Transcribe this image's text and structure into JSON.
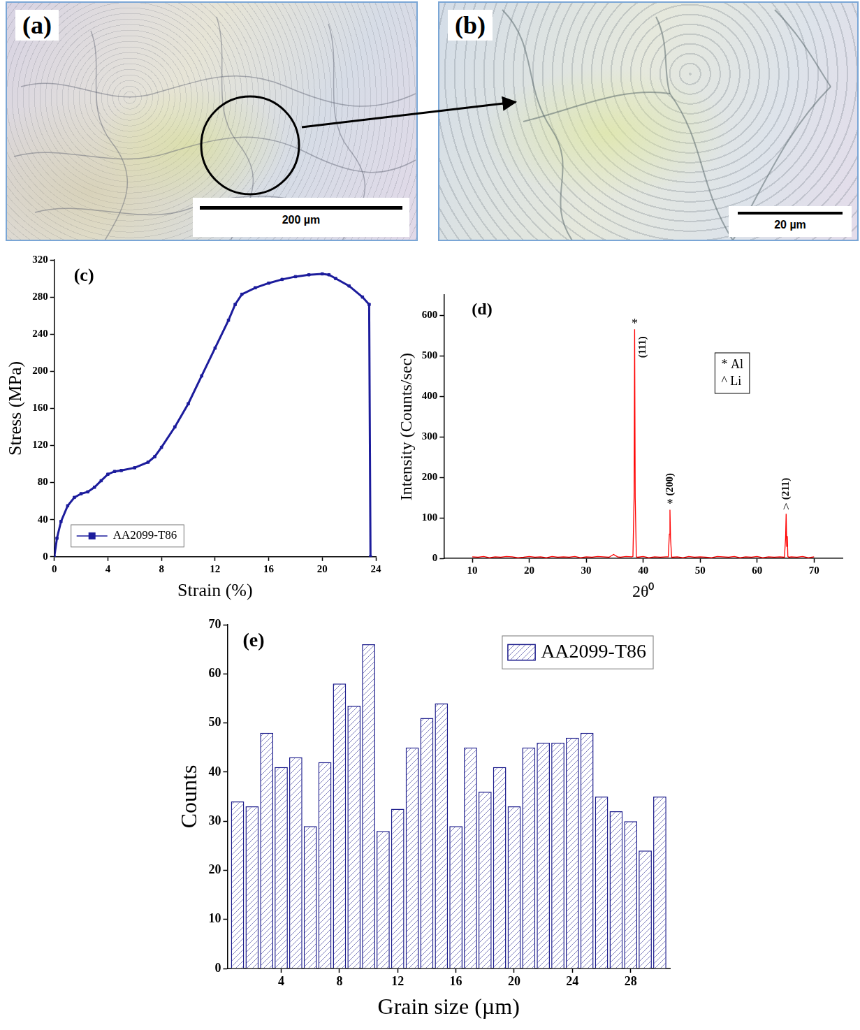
{
  "images": [
    {
      "label": "(a)",
      "scale_bar": "200 µm"
    },
    {
      "label": "(b)",
      "scale_bar": "20 µm"
    }
  ],
  "chart_data": [
    {
      "type": "line",
      "title": "(c)",
      "x_label": "Strain (%)",
      "y_label": "Stress (MPa)",
      "x": [
        0,
        0.2,
        0.5,
        1,
        1.5,
        2,
        2.5,
        3,
        3.5,
        4,
        4.5,
        5,
        6,
        7,
        7.5,
        8,
        9,
        10,
        11,
        12,
        13,
        13.5,
        14,
        15,
        16,
        17,
        18,
        19,
        20,
        20.5,
        21,
        22,
        23,
        23.5,
        23.6
      ],
      "series": [
        {
          "name": "AA2099-T86",
          "color": "#1c1c9c",
          "marker": "square",
          "values": [
            0,
            20,
            38,
            55,
            64,
            68,
            70,
            75,
            82,
            89,
            92,
            93,
            96,
            102,
            108,
            118,
            140,
            165,
            195,
            225,
            255,
            272,
            283,
            290,
            295,
            299,
            302,
            304,
            305,
            304,
            300,
            292,
            280,
            272,
            0
          ]
        }
      ],
      "xlim": [
        0,
        24
      ],
      "xticks": [
        0,
        4,
        8,
        12,
        16,
        20,
        24
      ],
      "ylim": [
        0,
        320
      ],
      "yticks": [
        0,
        40,
        80,
        120,
        160,
        200,
        240,
        280,
        320
      ],
      "grid": false,
      "legend": "lower left"
    },
    {
      "type": "line",
      "title": "(d)",
      "x_label": "2θ⁰",
      "y_label": "Intensity (Counts/sec)",
      "x": [
        10,
        11,
        12,
        13,
        14,
        15,
        16,
        17,
        18,
        19,
        20,
        21,
        22,
        23,
        24,
        25,
        26,
        27,
        28,
        29,
        30,
        31,
        32,
        33,
        34,
        34.8,
        35.5,
        36,
        37,
        38,
        38.2,
        38.4,
        38.5,
        38.6,
        38.8,
        39,
        40,
        41,
        42,
        43,
        44,
        44.4,
        44.6,
        44.7,
        44.8,
        45,
        46,
        47,
        48,
        49,
        50,
        51,
        52,
        53,
        54,
        55,
        56,
        57,
        58,
        59,
        60,
        61,
        62,
        63,
        64,
        64.8,
        65,
        65.1,
        65.2,
        65.3,
        65.4,
        65.6,
        66,
        67,
        68,
        69,
        70
      ],
      "values": [
        4,
        3,
        5,
        2,
        4,
        3,
        5,
        4,
        2,
        3,
        5,
        3,
        4,
        2,
        5,
        3,
        4,
        3,
        5,
        2,
        4,
        3,
        5,
        4,
        3,
        10,
        4,
        3,
        5,
        4,
        5,
        150,
        565,
        150,
        4,
        3,
        5,
        2,
        4,
        3,
        4,
        4,
        60,
        120,
        50,
        3,
        4,
        2,
        5,
        3,
        4,
        3,
        2,
        5,
        4,
        3,
        5,
        2,
        4,
        3,
        5,
        2,
        4,
        3,
        4,
        3,
        50,
        110,
        30,
        55,
        5,
        3,
        4,
        3,
        5,
        2,
        4
      ],
      "color": "#ff0000",
      "peaks": [
        {
          "x": 38.5,
          "y": 565,
          "symbol": "*",
          "label": "(111)"
        },
        {
          "x": 44.7,
          "y": 120,
          "symbol": "*",
          "label": "(200)"
        },
        {
          "x": 65.1,
          "y": 110,
          "symbol": "^",
          "label": "(211)"
        }
      ],
      "key": [
        "* Al",
        "^ Li"
      ],
      "xlim": [
        5,
        75
      ],
      "xticks": [
        10,
        20,
        30,
        40,
        50,
        60,
        70
      ],
      "ylim": [
        0,
        650
      ],
      "yticks": [
        0,
        100,
        200,
        300,
        400,
        500,
        600
      ],
      "grid": false
    },
    {
      "type": "bar",
      "title": "(e)",
      "x_label": "Grain size (µm)",
      "y_label": "Counts",
      "x": [
        1,
        2,
        3,
        4,
        5,
        6,
        7,
        8,
        9,
        10,
        11,
        12,
        13,
        14,
        15,
        16,
        17,
        18,
        19,
        20,
        21,
        22,
        23,
        24,
        25,
        26,
        27,
        28,
        29,
        30
      ],
      "series": [
        {
          "name": "AA2099-T86",
          "color": "#1c1c8c",
          "values": [
            34,
            33,
            48,
            41,
            43,
            29,
            42,
            58,
            53.5,
            66,
            28,
            32.5,
            45,
            51,
            54,
            29,
            45,
            36,
            41,
            33,
            45,
            46,
            46,
            47,
            48,
            35,
            32,
            30,
            24,
            35
          ]
        }
      ],
      "xlim": [
        0.3,
        30.7
      ],
      "xticks": [
        4,
        8,
        12,
        16,
        20,
        24,
        28
      ],
      "ylim": [
        0,
        70
      ],
      "yticks": [
        0,
        10,
        20,
        30,
        40,
        50,
        60,
        70
      ],
      "grid": false,
      "legend": "upper right"
    }
  ]
}
